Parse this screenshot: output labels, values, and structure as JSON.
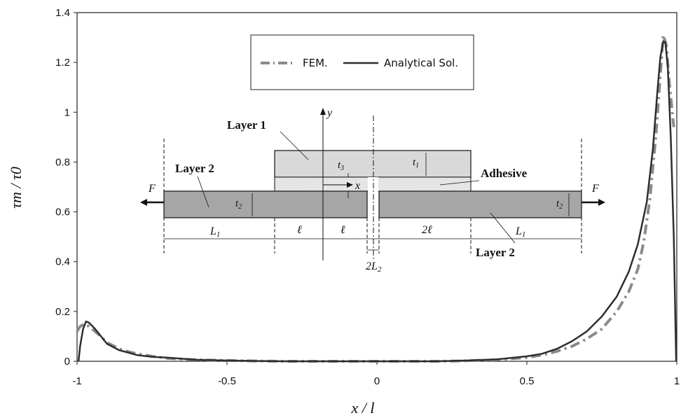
{
  "chart_data": {
    "type": "line",
    "xlabel": "x / l",
    "ylabel": "τm / τ0",
    "xlim": [
      -1,
      1
    ],
    "ylim": [
      0,
      1.4
    ],
    "x_ticks": [
      "-1",
      "-0.5",
      "0",
      "0.5",
      "1"
    ],
    "y_ticks": [
      "0",
      "0.2",
      "0.4",
      "0.6",
      "0.8",
      "1",
      "1.2",
      "1.4"
    ],
    "legend_position": "top-center",
    "series": [
      {
        "name": "FEM.",
        "style": "dash-dot",
        "color": "#8a8a8a",
        "points": [
          [
            -1.0,
            0.12
          ],
          [
            -0.99,
            0.14
          ],
          [
            -0.975,
            0.15
          ],
          [
            -0.96,
            0.14
          ],
          [
            -0.93,
            0.11
          ],
          [
            -0.9,
            0.075
          ],
          [
            -0.85,
            0.045
          ],
          [
            -0.8,
            0.03
          ],
          [
            -0.75,
            0.02
          ],
          [
            -0.7,
            0.012
          ],
          [
            -0.6,
            0.006
          ],
          [
            -0.5,
            0.003
          ],
          [
            -0.4,
            0.001
          ],
          [
            -0.3,
            0.0
          ],
          [
            -0.1,
            0.0
          ],
          [
            0.0,
            0.0
          ],
          [
            0.2,
            0.0
          ],
          [
            0.3,
            0.002
          ],
          [
            0.4,
            0.006
          ],
          [
            0.5,
            0.015
          ],
          [
            0.55,
            0.025
          ],
          [
            0.6,
            0.04
          ],
          [
            0.65,
            0.06
          ],
          [
            0.7,
            0.09
          ],
          [
            0.75,
            0.13
          ],
          [
            0.8,
            0.2
          ],
          [
            0.84,
            0.28
          ],
          [
            0.87,
            0.37
          ],
          [
            0.89,
            0.48
          ],
          [
            0.91,
            0.65
          ],
          [
            0.93,
            0.9
          ],
          [
            0.945,
            1.15
          ],
          [
            0.955,
            1.31
          ],
          [
            0.965,
            1.27
          ],
          [
            0.975,
            1.12
          ],
          [
            0.99,
            0.94
          ]
        ]
      },
      {
        "name": "Analytical Sol.",
        "style": "solid",
        "color": "#2e2e2e",
        "points": [
          [
            -0.995,
            0.0
          ],
          [
            -0.99,
            0.06
          ],
          [
            -0.98,
            0.13
          ],
          [
            -0.97,
            0.16
          ],
          [
            -0.96,
            0.155
          ],
          [
            -0.94,
            0.13
          ],
          [
            -0.92,
            0.1
          ],
          [
            -0.9,
            0.07
          ],
          [
            -0.86,
            0.045
          ],
          [
            -0.8,
            0.025
          ],
          [
            -0.75,
            0.018
          ],
          [
            -0.7,
            0.015
          ],
          [
            -0.65,
            0.01
          ],
          [
            -0.6,
            0.006
          ],
          [
            -0.5,
            0.003
          ],
          [
            -0.4,
            0.001
          ],
          [
            -0.3,
            0.0
          ],
          [
            0.0,
            0.0
          ],
          [
            0.2,
            0.0
          ],
          [
            0.3,
            0.003
          ],
          [
            0.4,
            0.008
          ],
          [
            0.5,
            0.02
          ],
          [
            0.55,
            0.03
          ],
          [
            0.6,
            0.05
          ],
          [
            0.65,
            0.08
          ],
          [
            0.7,
            0.12
          ],
          [
            0.75,
            0.18
          ],
          [
            0.8,
            0.26
          ],
          [
            0.84,
            0.36
          ],
          [
            0.87,
            0.47
          ],
          [
            0.9,
            0.64
          ],
          [
            0.92,
            0.85
          ],
          [
            0.935,
            1.08
          ],
          [
            0.945,
            1.22
          ],
          [
            0.955,
            1.285
          ],
          [
            0.962,
            1.28
          ],
          [
            0.97,
            1.18
          ],
          [
            0.98,
            0.9
          ],
          [
            0.99,
            0.5
          ],
          [
            0.998,
            0.0
          ]
        ]
      }
    ]
  },
  "inset": {
    "layer1": "Layer 1",
    "layer2_left": "Layer 2",
    "layer2_right": "Layer 2",
    "adhesive": "Adhesive",
    "force_left": "F",
    "force_right": "F",
    "t1": "t",
    "t1_sub": "1",
    "t2_left": "t",
    "t2_left_sub": "2",
    "t2_right": "t",
    "t2_right_sub": "2",
    "t3": "t",
    "t3_sub": "3",
    "x_axis": "x",
    "y_axis": "y",
    "L1_left": "L",
    "L1_left_sub": "1",
    "L1_right": "L",
    "L1_right_sub": "1",
    "ell_1": "ℓ",
    "ell_2": "ℓ",
    "two_ell": "2ℓ",
    "twoL2": "2L",
    "twoL2_sub": "2"
  }
}
